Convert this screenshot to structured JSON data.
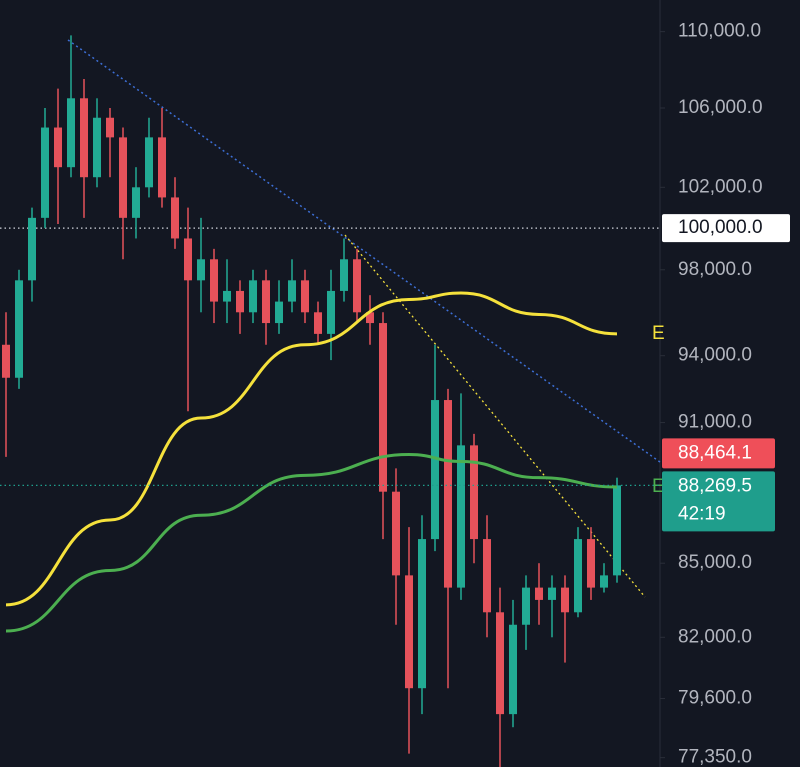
{
  "chart_data": {
    "type": "candlestick",
    "log_scale": true,
    "ylim": [
      77000,
      111700
    ],
    "yticks": [
      {
        "value": 110000,
        "label": "110,000.0"
      },
      {
        "value": 106000,
        "label": "106,000.0"
      },
      {
        "value": 102000,
        "label": "102,000.0"
      },
      {
        "value": 98000,
        "label": "98,000.0"
      },
      {
        "value": 94000,
        "label": "94,000.0"
      },
      {
        "value": 91000,
        "label": "91,000.0"
      },
      {
        "value": 85000,
        "label": "85,000.0"
      },
      {
        "value": 82000,
        "label": "82,000.0"
      },
      {
        "value": 79600,
        "label": "79,600.0"
      },
      {
        "value": 77350,
        "label": "77,350.0"
      }
    ],
    "level": {
      "value": 100000,
      "label": "100,000.0"
    },
    "up_color": "#22ab94",
    "down_color": "#e5525b",
    "candles": {
      "open": [
        94500,
        93000,
        97500,
        100500,
        105000,
        103000,
        106500,
        102500,
        105500,
        104500,
        100500,
        102000,
        104500,
        101500,
        99500,
        97500,
        98500,
        96500,
        97000,
        96000,
        97500,
        95500,
        96500,
        97500,
        96000,
        95000,
        97000,
        98500,
        96000,
        95500,
        88000,
        84500,
        80000,
        86000,
        92000,
        84000,
        90000,
        86000,
        83000,
        79000,
        82500,
        84000,
        83500,
        84000,
        83000,
        86000,
        84000,
        84500
      ],
      "high": [
        96000,
        98000,
        101000,
        106000,
        107000,
        109800,
        107500,
        106500,
        106000,
        105000,
        103000,
        105500,
        106000,
        102500,
        101000,
        100500,
        99000,
        98500,
        97500,
        98000,
        98000,
        97500,
        98500,
        98000,
        96500,
        98000,
        99500,
        99000,
        96800,
        96000,
        89000,
        86500,
        87000,
        94500,
        92500,
        92300,
        90500,
        87000,
        84000,
        83500,
        84500,
        85000,
        84500,
        84500,
        86500,
        86500,
        85000,
        88600
      ],
      "low": [
        89500,
        92500,
        96500,
        100000,
        100200,
        102500,
        100500,
        102000,
        102500,
        98500,
        99500,
        101500,
        101000,
        99000,
        91500,
        96000,
        95500,
        95500,
        95000,
        95500,
        94500,
        95000,
        96000,
        95500,
        94500,
        93800,
        96500,
        95500,
        94500,
        86000,
        82500,
        77500,
        79000,
        85500,
        80000,
        83500,
        85000,
        82000,
        77000,
        78500,
        81500,
        82500,
        82000,
        81000,
        82800,
        83500,
        83800,
        84200
      ],
      "close": [
        93000,
        97500,
        100500,
        105000,
        103000,
        106500,
        102500,
        105500,
        104500,
        100500,
        102000,
        104500,
        101500,
        99500,
        97500,
        98500,
        96500,
        97000,
        96000,
        97500,
        95500,
        96500,
        97500,
        96000,
        95000,
        97000,
        98500,
        96000,
        95500,
        88000,
        84500,
        80000,
        86000,
        92000,
        84000,
        90000,
        86000,
        83000,
        79000,
        82500,
        84000,
        83500,
        84000,
        83000,
        86000,
        84000,
        84500,
        88270
      ]
    },
    "series": [
      {
        "name": "E",
        "color": "#f5e13c",
        "x": [
          0,
          8,
          15,
          23,
          31,
          35,
          41,
          47
        ],
        "values": [
          83300,
          86800,
          91200,
          94500,
          96600,
          96900,
          95900,
          95000
        ]
      },
      {
        "name": "E",
        "color": "#4caf50",
        "x": [
          0,
          8,
          15,
          23,
          31,
          35,
          41,
          47
        ],
        "values": [
          82250,
          84700,
          87000,
          88700,
          89600,
          89300,
          88600,
          88200
        ]
      }
    ],
    "price_tags": [
      {
        "value": 88464.1,
        "label": "88,464.1",
        "color": "#ef4f59"
      },
      {
        "value": 88269.5,
        "label": "88,269.5",
        "countdown": "42:19",
        "color": "#1f9e8c"
      }
    ]
  }
}
